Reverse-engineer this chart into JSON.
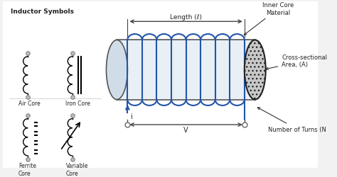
{
  "bg_color": "#f2f2f2",
  "border_color": "#999999",
  "title": "Inductor Symbols",
  "labels": {
    "air_core": "Air Core",
    "iron_core": "Iron Core",
    "ferrite_core": "Ferrite\nCore",
    "variable_core": "Variable\nCore",
    "length_label": "Length (ℓ)",
    "current_label": "i",
    "voltage_label": "V",
    "inner_core": "Inner Core\nMaterial",
    "cross_section": "Cross-sectional\nArea, (A)",
    "num_turns": "Number of Turns (N"
  },
  "coil_color": "#2255aa",
  "text_color": "#222222"
}
